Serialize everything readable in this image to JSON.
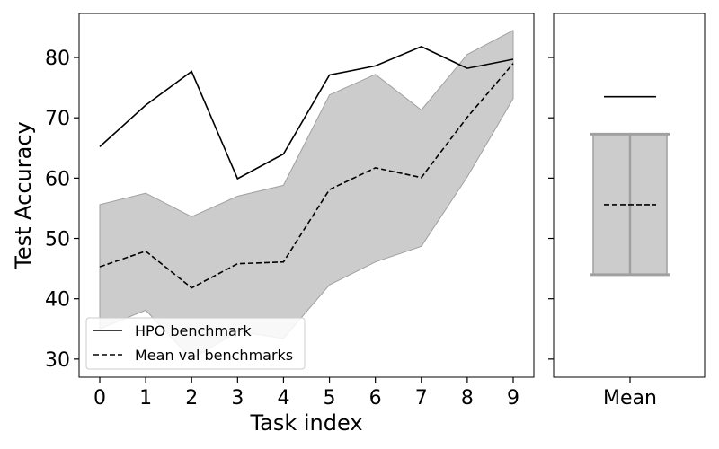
{
  "chart_data": [
    {
      "type": "line",
      "xlabel": "Task index",
      "ylabel": "Test Accuracy",
      "x": [
        0,
        1,
        2,
        3,
        4,
        5,
        6,
        7,
        8,
        9
      ],
      "xticks": [
        "0",
        "1",
        "2",
        "3",
        "4",
        "5",
        "6",
        "7",
        "8",
        "9"
      ],
      "yticks": [
        "30",
        "40",
        "50",
        "60",
        "70",
        "80"
      ],
      "ylim": [
        27,
        87.3
      ],
      "xlim": [
        -0.45,
        9.45
      ],
      "series": [
        {
          "name": "HPO benchmark",
          "style": "solid",
          "color": "#000000",
          "values": [
            65.2,
            72.1,
            77.7,
            59.9,
            64.0,
            77.1,
            78.6,
            81.8,
            78.2,
            79.7
          ]
        },
        {
          "name": "Mean val benchmarks",
          "style": "dashed",
          "color": "#000000",
          "values": [
            45.3,
            47.9,
            41.8,
            45.8,
            46.1,
            58.1,
            61.7,
            60.1,
            70.1,
            79.0
          ]
        }
      ],
      "band": {
        "color": "#cccccc",
        "edge_color": "#a0a0a0",
        "upper": [
          55.6,
          57.5,
          53.6,
          57.0,
          58.8,
          73.8,
          77.2,
          71.3,
          80.5,
          84.5
        ],
        "lower": [
          35.0,
          38.1,
          30.0,
          34.6,
          33.4,
          42.3,
          46.1,
          48.7,
          60.2,
          73.2
        ]
      },
      "legend": {
        "position": "lower-left",
        "entries": [
          "HPO benchmark",
          "Mean val benchmarks"
        ]
      },
      "grid": false
    },
    {
      "type": "box",
      "category": "Mean",
      "ylim": [
        27,
        87.3
      ],
      "shared_y": true,
      "hpo_mean": 73.5,
      "mean_val": 55.6,
      "box_low": 44.0,
      "box_high": 67.3,
      "box_color": "#cccccc",
      "edge_color": "#a0a0a0"
    }
  ]
}
